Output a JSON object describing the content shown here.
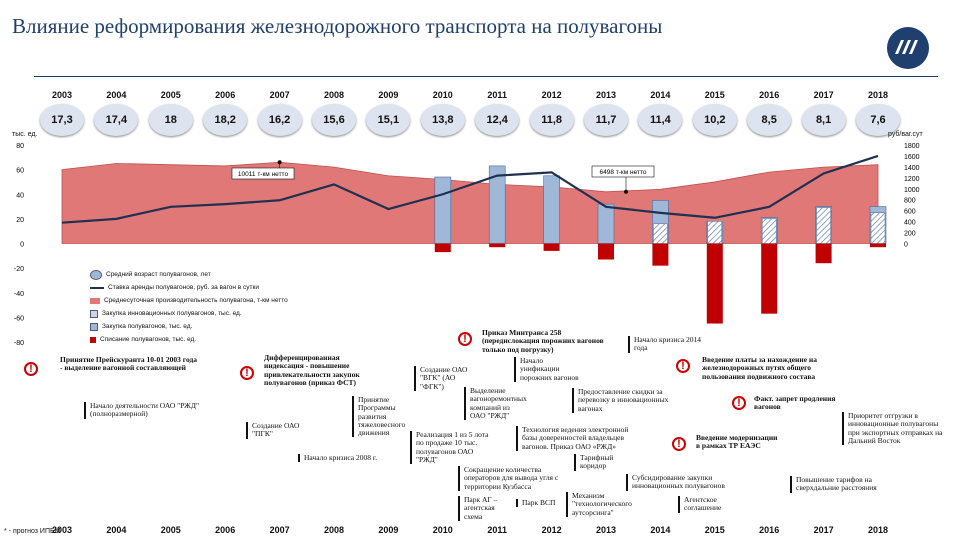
{
  "title": "Влияние реформирования железнодорожного транспорта на полувагоны",
  "years": [
    "2003",
    "2004",
    "2005",
    "2006",
    "2007",
    "2008",
    "2009",
    "2010",
    "2011",
    "2012",
    "2013",
    "2014",
    "2015",
    "2016",
    "2017",
    "2018"
  ],
  "axis_units": {
    "left": "тыс. ед.",
    "right": "руб/ваг.сут"
  },
  "footnote": "* - прогноз ИПЕМ",
  "colors": {
    "area": "#e07878",
    "line": "#1f3050",
    "innov": "#c8d8ea",
    "bar": "#9fb8d8",
    "write_off": "#c00000",
    "title": "#1f3f6e"
  },
  "chart_data": {
    "type": "bar",
    "categories": [
      "2003",
      "2004",
      "2005",
      "2006",
      "2007",
      "2008",
      "2009",
      "2010",
      "2011",
      "2012",
      "2013",
      "2014",
      "2015",
      "2016",
      "2017",
      "2018"
    ],
    "ylim": [
      -80,
      80
    ],
    "ylim_right": [
      0,
      1800
    ],
    "yticks_left": [
      "80",
      "60",
      "40",
      "20",
      "0",
      "-20",
      "-40",
      "-60",
      "-80"
    ],
    "yticks_right": [
      "1800",
      "1600",
      "1400",
      "1200",
      "1000",
      "800",
      "600",
      "400",
      "200",
      "0"
    ],
    "grid": false,
    "legend_position": "bottom-left",
    "annotations": [
      "10011 т-км нетто",
      "6498 т-км нетто"
    ],
    "series": [
      {
        "name": "Средний возраст полувагонов, лет",
        "type": "label",
        "values": [
          17.3,
          17.4,
          18,
          18.2,
          16.2,
          15.6,
          15.1,
          13.8,
          12.4,
          11.8,
          11.7,
          11.4,
          10.2,
          8.5,
          8.1,
          7.6
        ],
        "labels": [
          "17,3",
          "17,4",
          "18",
          "18,2",
          "16,2",
          "15,6",
          "15,1",
          "13,8",
          "12,4",
          "11,8",
          "11,7",
          "11,4",
          "10,2",
          "8,5",
          "8,1",
          "7,6"
        ]
      },
      {
        "name": "Ставка аренды полувагонов, руб. за вагон в сутки",
        "type": "line",
        "axis": "right",
        "values": [
          380,
          450,
          670,
          720,
          790,
          1080,
          630,
          900,
          1240,
          1300,
          670,
          560,
          470,
          670,
          1280,
          1600
        ]
      },
      {
        "name": "Среднесуточная производительность полувагона, т-км нетто",
        "type": "area",
        "axis": "left",
        "values": [
          60,
          65,
          64,
          63,
          66,
          62,
          55,
          52,
          48,
          46,
          42,
          44,
          50,
          58,
          62,
          64
        ]
      },
      {
        "name": "Закупка инновационных полувагонов, тыс. ед.",
        "type": "bar",
        "axis": "left",
        "values": [
          0,
          0,
          0,
          0,
          0,
          0,
          0,
          0,
          0,
          0,
          0,
          16,
          18,
          20,
          29,
          25
        ]
      },
      {
        "name": "Закупка полувагонов, тыс. ед.",
        "type": "bar",
        "axis": "left",
        "values": [
          0,
          0,
          0,
          0,
          0,
          0,
          0,
          54,
          63,
          55,
          32,
          35,
          18,
          21,
          30,
          30
        ]
      },
      {
        "name": "Списание полувагонов, тыс. ед.",
        "type": "bar",
        "axis": "left",
        "values": [
          0,
          0,
          0,
          0,
          0,
          0,
          0,
          -7,
          -3,
          -6,
          -13,
          -18,
          -65,
          -57,
          -16,
          -3
        ]
      }
    ]
  },
  "events": {
    "e1": "Принятие Прейскуранта 10-01 2003 года - выделение вагонной составляющей",
    "e2": "Начало деятельности ОАО \"РЖД\" (полноразмерной)",
    "e3": "Дифференцированная индексация - повышение привлекательности закупок полувагонов (приказ ФСТ)",
    "e4": "Создание ОАО \"ПГК\"",
    "e5": "Начало кризиса 2008 г.",
    "e6": "Принятие Программы развития тяжеловесного движения",
    "e7": "Создание ОАО \"ВГК\" (АО \"ФГК\")",
    "e8": "Выделение вагоноремонтных компаний из ОАО \"РЖД\"",
    "e9": "Реализация 1 из 5 лота по продаже 10 тыс. полувагонов ОАО \"РЖД\"",
    "e10": "Сокращение количества операторов для вывода угля с территории Кузбасса",
    "e11": "Парк АГ – агентская схема",
    "e12": "Парк ВСП",
    "e13": "Приказ Минтранса 258 (передислокация порожних вагонов только под погрузку)",
    "e14": "Начало унификации порожних вагонов",
    "e15": "Технология ведения электронной базы доверенностей владельцев вагонов. Приказ ОАО «РЖД»",
    "e16": "Предоставление скидки за перевозку в инновационных вагонах",
    "e17": "Тарифный коридор",
    "e18": "Механизм \"технологического аутсорсинга\"",
    "e19": "Начало кризиса 2014 года",
    "e20": "Субсидирование закупки инновационных полувагонов",
    "e21": "Агентское соглашение",
    "e22": "Введение модернизации в рамках ТР ЕАЭС",
    "e23": "Введение платы за нахождение на железнодорожных путях общего пользования подвижного состава",
    "e24": "Факт. запрет продления вагонов",
    "e25": "Приоритет отгрузки в инновационные полувагоны при экспортных отправках на Дальний Восток",
    "e26": "Повышение тарифов на сверхдальние расстояния"
  }
}
